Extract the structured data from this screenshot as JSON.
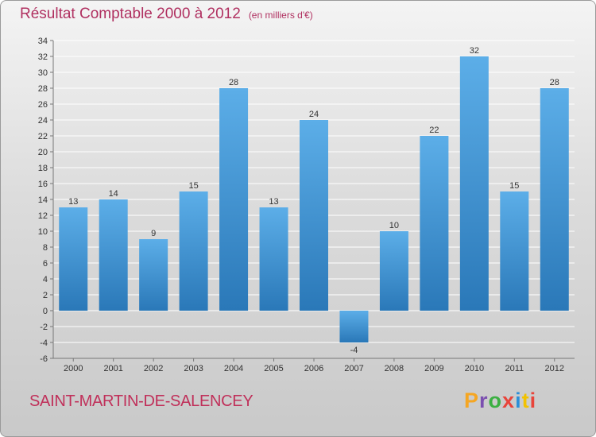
{
  "header": {
    "title": "Résultat Comptable 2000 à 2012",
    "unit": "(en milliers d'€)"
  },
  "footer": {
    "commune": "SAINT-MARTIN-DE-SALENCEY",
    "logo": "Proxiti",
    "logo_colors": [
      "#f5a623",
      "#7b4fb0",
      "#3cb043",
      "#e8443a",
      "#2d8fd8",
      "#f2c200",
      "#e8443a"
    ]
  },
  "colors": {
    "title": "#b03060",
    "bar_top": "#5caee8",
    "bar_bottom": "#2a78b8",
    "grid": "#ffffff"
  },
  "chart_data": {
    "type": "bar",
    "title": "Résultat Comptable 2000 à 2012",
    "categories": [
      "2000",
      "2001",
      "2002",
      "2003",
      "2004",
      "2005",
      "2006",
      "2007",
      "2008",
      "2009",
      "2010",
      "2011",
      "2012"
    ],
    "values": [
      13,
      14,
      9,
      15,
      28,
      13,
      24,
      -4,
      10,
      22,
      32,
      15,
      28
    ],
    "ylim": [
      -6,
      34
    ],
    "yticks": [
      -6,
      -4,
      -2,
      0,
      2,
      4,
      6,
      8,
      10,
      12,
      14,
      16,
      18,
      20,
      22,
      24,
      26,
      28,
      30,
      32,
      34
    ],
    "grid": true,
    "data_labels": true
  }
}
